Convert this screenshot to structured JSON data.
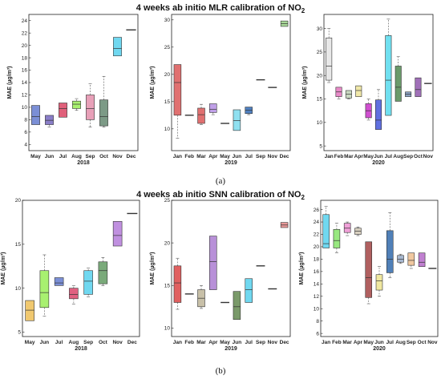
{
  "top": {
    "title": "4 weeks ab initio MLR calibration of NO",
    "title_sub": "2",
    "caption": "(a)"
  },
  "bottom": {
    "title": "4 weeks ab initio SNN calibration of NO",
    "title_sub": "2",
    "caption": "(b)"
  },
  "chart_data": [
    {
      "type": "box",
      "group": "MLR",
      "xlabel": "2018",
      "ylabel": "MAE (µg/m³)",
      "ylim": [
        3,
        25
      ],
      "yticks": [
        4,
        6,
        8,
        10,
        12,
        14,
        16,
        18,
        20,
        22,
        24
      ],
      "categories": [
        "May",
        "Jun",
        "Jul",
        "Aug",
        "Sep",
        "Oct",
        "Nov",
        "Dec"
      ],
      "boxes": [
        {
          "q1": 7.2,
          "med": 8.5,
          "q3": 10.3,
          "lo": 7.2,
          "hi": 10.3,
          "color": "#7b8fd6"
        },
        {
          "q1": 7.2,
          "med": 7.9,
          "q3": 8.7,
          "lo": 6.8,
          "hi": 8.7,
          "color": "#8a7ec8"
        },
        {
          "q1": 8.4,
          "med": 9.8,
          "q3": 10.7,
          "lo": 8.4,
          "hi": 10.7,
          "color": "#e0607a"
        },
        {
          "q1": 9.8,
          "med": 10.5,
          "q3": 11.0,
          "lo": 9.5,
          "hi": 11.4,
          "color": "#a8f070"
        },
        {
          "q1": 8.0,
          "med": 9.8,
          "q3": 12.0,
          "lo": 6.8,
          "hi": 13.8,
          "color": "#e8a0b8"
        },
        {
          "q1": 7.0,
          "med": 8.5,
          "q3": 11.2,
          "lo": 6.8,
          "hi": 15.0,
          "color": "#7c9a86"
        },
        {
          "q1": 18.3,
          "med": 19.5,
          "q3": 21.3,
          "lo": 18.3,
          "hi": 21.3,
          "color": "#70d8f0"
        },
        {
          "q1": 22.5,
          "med": 22.5,
          "q3": 22.5,
          "lo": 22.5,
          "hi": 22.5,
          "color": "#444444"
        }
      ]
    },
    {
      "type": "box",
      "group": "MLR",
      "xlabel": "2019",
      "ylabel": "MAE (µg/m³)",
      "ylim": [
        6,
        31
      ],
      "yticks": [
        10,
        15,
        20,
        25,
        30
      ],
      "categories": [
        "Jan",
        "Feb",
        "Mar",
        "Apr",
        "May",
        "Jun",
        "Jul",
        "Sep",
        "Nov",
        "Dec"
      ],
      "boxes": [
        {
          "q1": 12.5,
          "med": 18.5,
          "q3": 21.8,
          "lo": 8.3,
          "hi": 21.8,
          "color": "#e07070"
        },
        {
          "q1": 12.5,
          "med": 12.5,
          "q3": 12.5,
          "lo": 12.5,
          "hi": 12.5,
          "color": "#444444"
        },
        {
          "q1": 11.0,
          "med": 12.6,
          "q3": 13.8,
          "lo": 10.8,
          "hi": 14.5,
          "color": "#e07070"
        },
        {
          "q1": 13.0,
          "med": 13.6,
          "q3": 14.6,
          "lo": 12.6,
          "hi": 14.6,
          "color": "#c0a0e8"
        },
        {
          "q1": 11.0,
          "med": 11.0,
          "q3": 11.0,
          "lo": 11.0,
          "hi": 11.0,
          "color": "#444444"
        },
        {
          "q1": 9.7,
          "med": 11.5,
          "q3": 13.5,
          "lo": 9.7,
          "hi": 13.5,
          "color": "#90e0f0"
        },
        {
          "q1": 12.8,
          "med": 13.4,
          "q3": 14.0,
          "lo": 12.6,
          "hi": 14.0,
          "color": "#5080c0"
        },
        {
          "q1": 19.0,
          "med": 19.0,
          "q3": 19.0,
          "lo": 19.0,
          "hi": 19.0,
          "color": "#444444"
        },
        {
          "q1": 17.6,
          "med": 17.6,
          "q3": 17.6,
          "lo": 17.6,
          "hi": 17.6,
          "color": "#444444"
        },
        {
          "q1": 28.8,
          "med": 29.3,
          "q3": 29.8,
          "lo": 28.8,
          "hi": 29.8,
          "color": "#a8d898"
        }
      ]
    },
    {
      "type": "box",
      "group": "MLR",
      "xlabel": "2020",
      "ylabel": "MAE (µg/m³)",
      "ylim": [
        4,
        33
      ],
      "yticks": [
        5,
        10,
        15,
        20,
        25,
        30
      ],
      "categories": [
        "Jan",
        "Feb",
        "Mar",
        "Apr",
        "May",
        "Jun",
        "Jul",
        "Aug",
        "Sep",
        "Oct",
        "Nov"
      ],
      "boxes": [
        {
          "q1": 19.0,
          "med": 22.0,
          "q3": 28.0,
          "lo": 18.5,
          "hi": 30.0,
          "color": "#e8e8e8"
        },
        {
          "q1": 15.5,
          "med": 16.5,
          "q3": 17.5,
          "lo": 15.0,
          "hi": 17.5,
          "color": "#e88ac8"
        },
        {
          "q1": 15.2,
          "med": 16.0,
          "q3": 16.8,
          "lo": 15.0,
          "hi": 16.8,
          "color": "#c8d8c0"
        },
        {
          "q1": 15.5,
          "med": 16.8,
          "q3": 17.8,
          "lo": 15.5,
          "hi": 17.8,
          "color": "#f0e8a8"
        },
        {
          "q1": 11.0,
          "med": 12.5,
          "q3": 14.0,
          "lo": 10.5,
          "hi": 15.0,
          "color": "#d050d0"
        },
        {
          "q1": 8.5,
          "med": 10.5,
          "q3": 14.8,
          "lo": 8.5,
          "hi": 17.0,
          "color": "#6070e0"
        },
        {
          "q1": 11.5,
          "med": 19.0,
          "q3": 28.5,
          "lo": 11.5,
          "hi": 32.0,
          "color": "#70e0f0"
        },
        {
          "q1": 14.5,
          "med": 17.5,
          "q3": 22.0,
          "lo": 14.5,
          "hi": 24.0,
          "color": "#6a9a6a"
        },
        {
          "q1": 15.5,
          "med": 16.0,
          "q3": 16.5,
          "lo": 15.5,
          "hi": 16.5,
          "color": "#8aa0c0"
        },
        {
          "q1": 15.5,
          "med": 17.0,
          "q3": 19.5,
          "lo": 15.5,
          "hi": 19.5,
          "color": "#a070b8"
        },
        {
          "q1": 18.3,
          "med": 18.3,
          "q3": 18.3,
          "lo": 18.3,
          "hi": 18.3,
          "color": "#444444"
        }
      ]
    },
    {
      "type": "box",
      "group": "SNN",
      "xlabel": "2018",
      "ylabel": "MAE (µg/m³)",
      "ylim": [
        4.5,
        20
      ],
      "yticks": [
        5,
        10,
        15,
        20
      ],
      "categories": [
        "May",
        "Jun",
        "Jul",
        "Aug",
        "Sep",
        "Oct",
        "Nov",
        "Dec"
      ],
      "boxes": [
        {
          "q1": 6.3,
          "med": 7.5,
          "q3": 8.6,
          "lo": 6.3,
          "hi": 8.6,
          "color": "#f0c870"
        },
        {
          "q1": 7.8,
          "med": 9.5,
          "q3": 12.0,
          "lo": 6.8,
          "hi": 13.8,
          "color": "#a8f070"
        },
        {
          "q1": 10.3,
          "med": 10.6,
          "q3": 11.2,
          "lo": 10.3,
          "hi": 11.2,
          "color": "#7b8fd6"
        },
        {
          "q1": 8.8,
          "med": 9.3,
          "q3": 10.0,
          "lo": 8.2,
          "hi": 10.3,
          "color": "#e06080"
        },
        {
          "q1": 9.3,
          "med": 10.8,
          "q3": 12.0,
          "lo": 9.0,
          "hi": 12.3,
          "color": "#70d8f0"
        },
        {
          "q1": 10.5,
          "med": 12.0,
          "q3": 13.0,
          "lo": 10.3,
          "hi": 13.5,
          "color": "#7aaa7a"
        },
        {
          "q1": 14.8,
          "med": 16.0,
          "q3": 17.6,
          "lo": 14.8,
          "hi": 17.6,
          "color": "#c090e0"
        },
        {
          "q1": 18.5,
          "med": 18.5,
          "q3": 18.5,
          "lo": 18.5,
          "hi": 18.5,
          "color": "#444444"
        }
      ]
    },
    {
      "type": "box",
      "group": "SNN",
      "xlabel": "2019",
      "ylabel": "MAE (µg/m³)",
      "ylim": [
        9,
        25
      ],
      "yticks": [
        10,
        15,
        20,
        25
      ],
      "categories": [
        "Jan",
        "Feb",
        "Mar",
        "Apr",
        "May",
        "Jun",
        "Jul",
        "Sep",
        "Nov",
        "Dec"
      ],
      "boxes": [
        {
          "q1": 13.0,
          "med": 15.3,
          "q3": 17.3,
          "lo": 12.2,
          "hi": 18.2,
          "color": "#e06060"
        },
        {
          "q1": 14.0,
          "med": 14.0,
          "q3": 14.0,
          "lo": 14.0,
          "hi": 14.0,
          "color": "#444444"
        },
        {
          "q1": 12.5,
          "med": 13.5,
          "q3": 14.5,
          "lo": 12.3,
          "hi": 15.0,
          "color": "#c8c0a8"
        },
        {
          "q1": 14.5,
          "med": 17.8,
          "q3": 20.8,
          "lo": 14.5,
          "hi": 20.8,
          "color": "#b890d8"
        },
        {
          "q1": 13.0,
          "med": 13.0,
          "q3": 13.0,
          "lo": 13.0,
          "hi": 13.0,
          "color": "#444444"
        },
        {
          "q1": 11.0,
          "med": 12.5,
          "q3": 14.3,
          "lo": 11.0,
          "hi": 14.3,
          "color": "#7a9a6a"
        },
        {
          "q1": 13.0,
          "med": 14.5,
          "q3": 15.8,
          "lo": 13.0,
          "hi": 15.8,
          "color": "#70d8f0"
        },
        {
          "q1": 17.3,
          "med": 17.3,
          "q3": 17.3,
          "lo": 17.3,
          "hi": 17.3,
          "color": "#444444"
        },
        {
          "q1": 14.6,
          "med": 14.6,
          "q3": 14.6,
          "lo": 14.6,
          "hi": 14.6,
          "color": "#444444"
        },
        {
          "q1": 21.8,
          "med": 22.1,
          "q3": 22.4,
          "lo": 21.8,
          "hi": 22.4,
          "color": "#e89898"
        }
      ]
    },
    {
      "type": "box",
      "group": "SNN",
      "xlabel": "2020",
      "ylabel": "MAE (µg/m³)",
      "ylim": [
        5.5,
        27.5
      ],
      "yticks": [
        6,
        8,
        10,
        12,
        14,
        16,
        18,
        20,
        22,
        24,
        26
      ],
      "categories": [
        "Jan",
        "Feb",
        "Mar",
        "Apr",
        "May",
        "Jun",
        "Jul",
        "Aug",
        "Sep",
        "Oct",
        "Nov"
      ],
      "boxes": [
        {
          "q1": 19.8,
          "med": 20.5,
          "q3": 25.2,
          "lo": 19.8,
          "hi": 26.5,
          "color": "#70d8f0"
        },
        {
          "q1": 19.8,
          "med": 21.0,
          "q3": 22.8,
          "lo": 19.0,
          "hi": 23.8,
          "color": "#98e880"
        },
        {
          "q1": 22.3,
          "med": 23.0,
          "q3": 23.8,
          "lo": 21.8,
          "hi": 24.0,
          "color": "#f0a0d8"
        },
        {
          "q1": 22.0,
          "med": 22.5,
          "q3": 23.0,
          "lo": 21.8,
          "hi": 23.2,
          "color": "#d8d0c0"
        },
        {
          "q1": 11.8,
          "med": 15.0,
          "q3": 20.8,
          "lo": 10.8,
          "hi": 20.8,
          "color": "#b06060"
        },
        {
          "q1": 13.0,
          "med": 14.5,
          "q3": 15.5,
          "lo": 12.0,
          "hi": 16.8,
          "color": "#f0e8a0"
        },
        {
          "q1": 15.8,
          "med": 18.0,
          "q3": 22.6,
          "lo": 15.0,
          "hi": 25.5,
          "color": "#5080b8"
        },
        {
          "q1": 17.5,
          "med": 18.0,
          "q3": 18.6,
          "lo": 17.3,
          "hi": 18.8,
          "color": "#a8b8d0"
        },
        {
          "q1": 17.0,
          "med": 17.8,
          "q3": 19.0,
          "lo": 16.5,
          "hi": 19.0,
          "color": "#f0c8a0"
        },
        {
          "q1": 16.8,
          "med": 17.5,
          "q3": 19.0,
          "lo": 16.8,
          "hi": 19.0,
          "color": "#c080d0"
        },
        {
          "q1": 16.5,
          "med": 16.5,
          "q3": 16.5,
          "lo": 16.5,
          "hi": 16.5,
          "color": "#444444"
        }
      ]
    }
  ]
}
